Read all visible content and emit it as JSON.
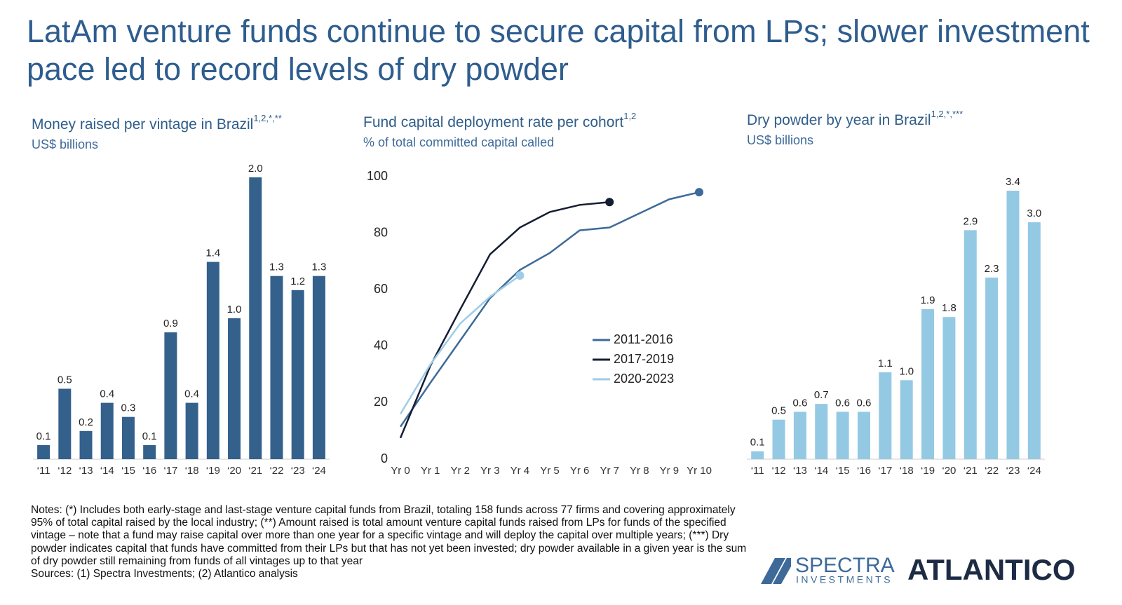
{
  "title": "LatAm venture funds continue to secure capital from LPs; slower investment pace led to record levels of dry powder",
  "chart_data": [
    {
      "type": "bar",
      "title": "Money raised per vintage in Brazil",
      "title_superscript": "1,2,*,**",
      "subtitle": "US$ billions",
      "categories": [
        "‘11",
        "‘12",
        "‘13",
        "‘14",
        "‘15",
        "‘16",
        "‘17",
        "‘18",
        "‘19",
        "‘20",
        "‘21",
        "‘22",
        "‘23",
        "‘24"
      ],
      "values": [
        0.1,
        0.5,
        0.2,
        0.4,
        0.3,
        0.1,
        0.9,
        0.4,
        1.4,
        1.0,
        2.0,
        1.3,
        1.2,
        1.3
      ],
      "value_labels": [
        "0.1",
        "0.5",
        "0.2",
        "0.4",
        "0.3",
        "0.1",
        "0.9",
        "0.4",
        "1.4",
        "1.0",
        "2.0",
        "1.3",
        "1.2",
        "1.3"
      ],
      "color": "#34608c"
    },
    {
      "type": "line",
      "title": "Fund capital deployment rate per cohort",
      "title_superscript": "1,2",
      "subtitle": "% of total committed capital called",
      "categories": [
        "Yr 0",
        "Yr 1",
        "Yr 2",
        "Yr 3",
        "Yr 4",
        "Yr 5",
        "Yr 6",
        "Yr 7",
        "Yr 8",
        "Yr 9",
        "Yr 10"
      ],
      "ylim": [
        0,
        100
      ],
      "yticks": [
        0,
        20,
        40,
        60,
        80,
        100
      ],
      "legend": "center-right",
      "series": [
        {
          "name": "2011-2016",
          "color": "#3d6a99",
          "values": [
            11.5,
            27,
            42,
            57,
            67,
            73,
            81,
            82,
            87,
            92,
            94.5
          ]
        },
        {
          "name": "2017-2019",
          "color": "#141d33",
          "values": [
            7.5,
            33,
            53,
            72.5,
            82,
            87.5,
            90,
            91,
            null,
            null,
            null
          ]
        },
        {
          "name": "2020-2023",
          "color": "#9fcce6",
          "values": [
            16,
            33.5,
            48,
            57.5,
            65,
            null,
            null,
            null,
            null,
            null,
            null
          ]
        }
      ]
    },
    {
      "type": "bar",
      "title": "Dry powder by year in Brazil",
      "title_superscript": "1,2,*,***",
      "subtitle": "US$ billions",
      "categories": [
        "‘11",
        "‘12",
        "‘13",
        "‘14",
        "‘15",
        "‘16",
        "‘17",
        "‘18",
        "‘19",
        "‘20",
        "‘21",
        "‘22",
        "‘23",
        "‘24"
      ],
      "values": [
        0.1,
        0.5,
        0.6,
        0.7,
        0.6,
        0.6,
        1.1,
        1.0,
        1.9,
        1.8,
        2.9,
        2.3,
        3.4,
        3.0
      ],
      "value_labels": [
        "0.1",
        "0.5",
        "0.6",
        "0.7",
        "0.6",
        "0.6",
        "1.1",
        "1.0",
        "1.9",
        "1.8",
        "2.9",
        "2.3",
        "3.4",
        "3.0"
      ],
      "color": "#94c9e4"
    }
  ],
  "notes": "Notes: (*) Includes both early-stage and last-stage venture capital funds from Brazil, totaling 158 funds across 77 firms and covering approximately 95% of total capital raised by the local industry; (**) Amount raised is total amount venture capital funds raised from LPs for funds of the specified vintage – note that a fund may raise capital over more than one year for a specific vintage and will deploy the capital over multiple years; (***) Dry powder indicates capital that funds have committed from their LPs but that has not yet been invested; dry powder available in a given year is the sum of dry powder still remaining from funds of all vintages up to that year",
  "sources": "Sources: (1) Spectra Investments; (2) Atlantico analysis",
  "logos": {
    "spectra": "SPECTRA",
    "spectra_sub": "INVESTMENTS",
    "atlantico": "ATLANTICO"
  }
}
